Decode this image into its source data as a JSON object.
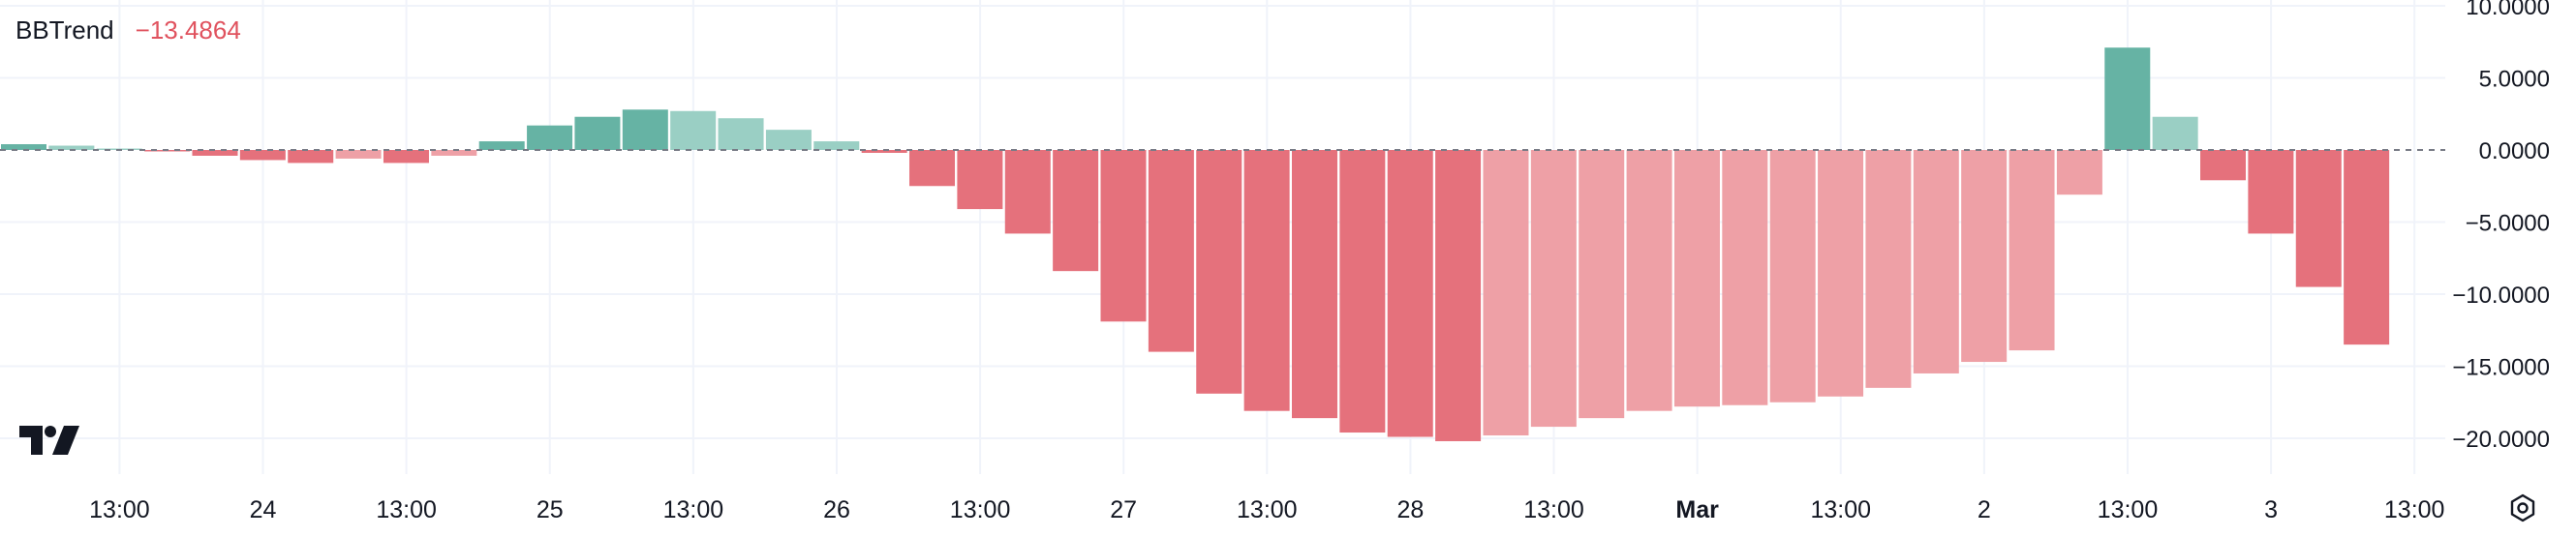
{
  "indicator": {
    "name": "BBTrend",
    "value": "−13.4864",
    "value_color": "#e0525e"
  },
  "x_axis": {
    "ticks": [
      {
        "label": "13:00",
        "bar": 2.5,
        "bold": false
      },
      {
        "label": "24",
        "bar": 5.5,
        "bold": false
      },
      {
        "label": "13:00",
        "bar": 8.5,
        "bold": false
      },
      {
        "label": "25",
        "bar": 11.5,
        "bold": false
      },
      {
        "label": "13:00",
        "bar": 14.5,
        "bold": false
      },
      {
        "label": "26",
        "bar": 17.5,
        "bold": false
      },
      {
        "label": "13:00",
        "bar": 20.5,
        "bold": false
      },
      {
        "label": "27",
        "bar": 23.5,
        "bold": false
      },
      {
        "label": "13:00",
        "bar": 26.5,
        "bold": false
      },
      {
        "label": "28",
        "bar": 29.5,
        "bold": false
      },
      {
        "label": "13:00",
        "bar": 32.5,
        "bold": false
      },
      {
        "label": "Mar",
        "bar": 35.5,
        "bold": true
      },
      {
        "label": "13:00",
        "bar": 38.5,
        "bold": false
      },
      {
        "label": "2",
        "bar": 41.5,
        "bold": false
      },
      {
        "label": "13:00",
        "bar": 44.5,
        "bold": false
      },
      {
        "label": "3",
        "bar": 47.5,
        "bold": false
      },
      {
        "label": "13:00",
        "bar": 50.5,
        "bold": false
      }
    ]
  },
  "y_axis": {
    "ticks": [
      {
        "label": "10.0000",
        "value": 10
      },
      {
        "label": "5.0000",
        "value": 5
      },
      {
        "label": "0.0000",
        "value": 0
      },
      {
        "label": "−5.0000",
        "value": -5
      },
      {
        "label": "−10.0000",
        "value": -10
      },
      {
        "label": "−15.0000",
        "value": -15
      },
      {
        "label": "−20.0000",
        "value": -20
      }
    ]
  },
  "chart_data": {
    "type": "bar",
    "series_name": "BBTrend",
    "ylim": [
      -22.4,
      10.1
    ],
    "grid": true,
    "zero_line": "dashed",
    "colors": {
      "pos_strong": "#66b3a4",
      "pos_weak": "#9acfc4",
      "neg_strong": "#e5717c",
      "neg_weak": "#eea0a6",
      "grid": "#f0f3fa",
      "axis_text": "#131722"
    },
    "values": [
      {
        "v": 0.4,
        "s": "pos_strong"
      },
      {
        "v": 0.3,
        "s": "pos_weak"
      },
      {
        "v": 0.1,
        "s": "pos_weak"
      },
      {
        "v": -0.1,
        "s": "neg_strong"
      },
      {
        "v": -0.4,
        "s": "neg_strong"
      },
      {
        "v": -0.7,
        "s": "neg_strong"
      },
      {
        "v": -0.9,
        "s": "neg_strong"
      },
      {
        "v": -0.6,
        "s": "neg_weak"
      },
      {
        "v": -0.9,
        "s": "neg_strong"
      },
      {
        "v": -0.4,
        "s": "neg_weak"
      },
      {
        "v": 0.6,
        "s": "pos_strong"
      },
      {
        "v": 1.7,
        "s": "pos_strong"
      },
      {
        "v": 2.3,
        "s": "pos_strong"
      },
      {
        "v": 2.8,
        "s": "pos_strong"
      },
      {
        "v": 2.7,
        "s": "pos_weak"
      },
      {
        "v": 2.2,
        "s": "pos_weak"
      },
      {
        "v": 1.4,
        "s": "pos_weak"
      },
      {
        "v": 0.6,
        "s": "pos_weak"
      },
      {
        "v": -0.2,
        "s": "neg_strong"
      },
      {
        "v": -2.5,
        "s": "neg_strong"
      },
      {
        "v": -4.1,
        "s": "neg_strong"
      },
      {
        "v": -5.8,
        "s": "neg_strong"
      },
      {
        "v": -8.4,
        "s": "neg_strong"
      },
      {
        "v": -11.9,
        "s": "neg_strong"
      },
      {
        "v": -14.0,
        "s": "neg_strong"
      },
      {
        "v": -16.9,
        "s": "neg_strong"
      },
      {
        "v": -18.1,
        "s": "neg_strong"
      },
      {
        "v": -18.6,
        "s": "neg_strong"
      },
      {
        "v": -19.6,
        "s": "neg_strong"
      },
      {
        "v": -19.9,
        "s": "neg_strong"
      },
      {
        "v": -20.2,
        "s": "neg_strong"
      },
      {
        "v": -19.8,
        "s": "neg_weak"
      },
      {
        "v": -19.2,
        "s": "neg_weak"
      },
      {
        "v": -18.6,
        "s": "neg_weak"
      },
      {
        "v": -18.1,
        "s": "neg_weak"
      },
      {
        "v": -17.8,
        "s": "neg_weak"
      },
      {
        "v": -17.7,
        "s": "neg_weak"
      },
      {
        "v": -17.5,
        "s": "neg_weak"
      },
      {
        "v": -17.1,
        "s": "neg_weak"
      },
      {
        "v": -16.5,
        "s": "neg_weak"
      },
      {
        "v": -15.5,
        "s": "neg_weak"
      },
      {
        "v": -14.7,
        "s": "neg_weak"
      },
      {
        "v": -13.9,
        "s": "neg_weak"
      },
      {
        "v": -3.1,
        "s": "neg_weak"
      },
      {
        "v": 7.1,
        "s": "pos_strong"
      },
      {
        "v": 2.3,
        "s": "pos_weak"
      },
      {
        "v": -2.1,
        "s": "neg_strong"
      },
      {
        "v": -5.8,
        "s": "neg_strong"
      },
      {
        "v": -9.5,
        "s": "neg_strong"
      },
      {
        "v": -13.5,
        "s": "neg_strong"
      }
    ]
  },
  "icons": {
    "logo": "tradingview-logo-icon",
    "settings": "settings-gear-icon"
  }
}
